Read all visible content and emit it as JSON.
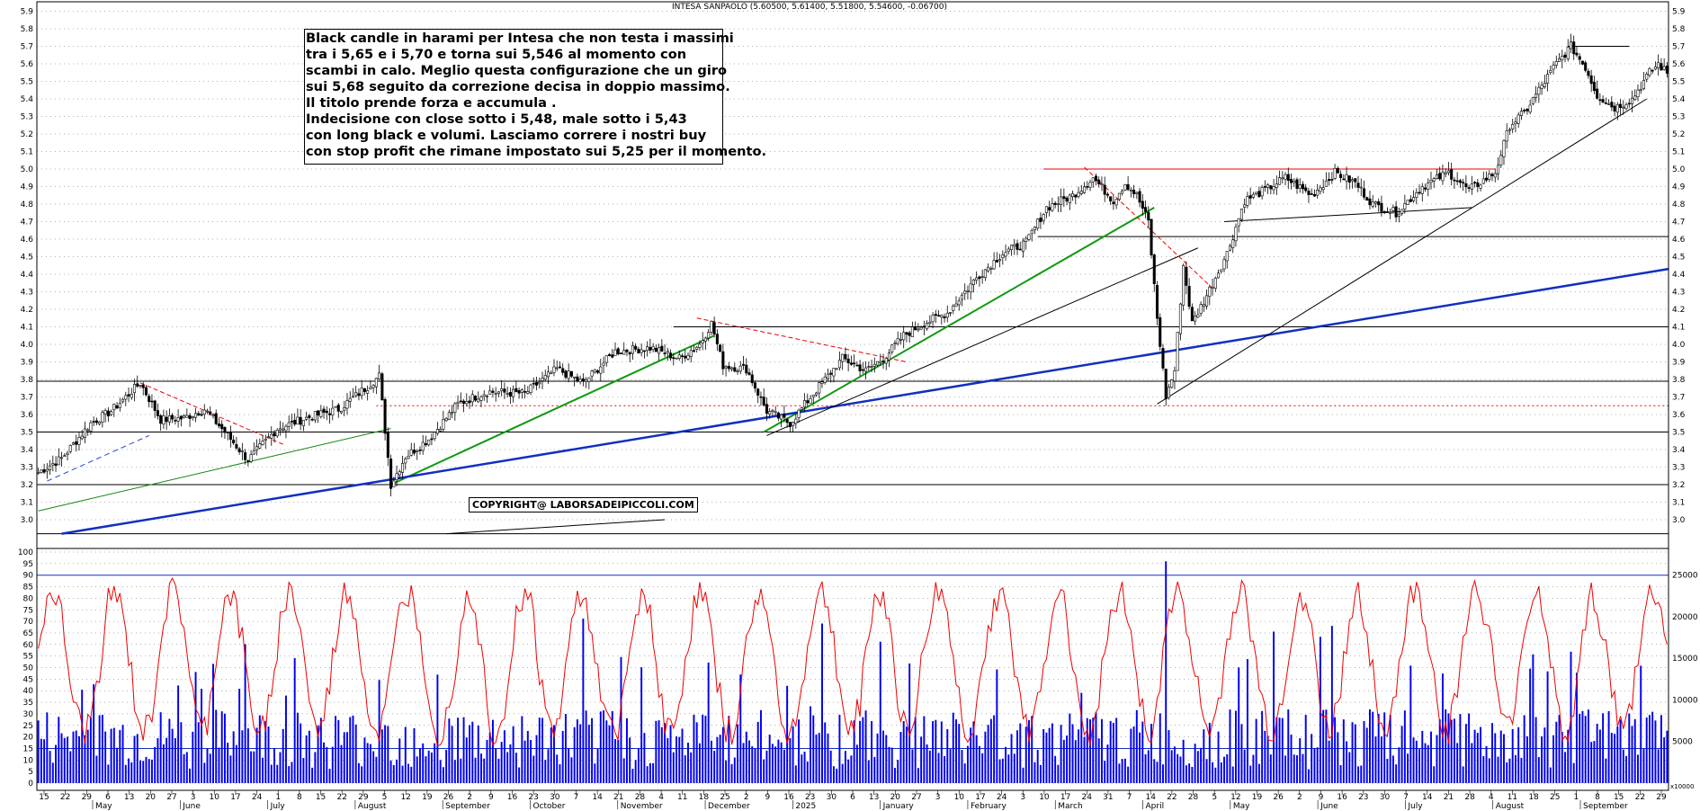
{
  "header": {
    "title": "INTESA SANPAOLO (5.60500, 5.61400, 5.51800, 5.54600, -0.06700)"
  },
  "annotation": {
    "lines": [
      "Black candle in harami per Intesa che non testa i massimi",
      "tra i 5,65 e i 5,70 e torna sui 5,546 al momento con",
      "scambi in calo. Meglio questa configurazione che un giro",
      "sui 5,68 seguito da correzione decisa in doppio massimo.",
      "Il titolo prende forza e accumula .",
      "Indecisione con close sotto i 5,48, male sotto i 5,43",
      "con long black e volumi. Lasciamo correre i nostri buy",
      "con stop profit che rimane impostato sui 5,25 per il momento."
    ],
    "copyright": "COPYRIGHT@ LABORSADEIPICCOLI.COM"
  },
  "chart_data": [
    {
      "type": "candlestick",
      "title": "INTESA SANPAOLO (5.60500, 5.61400, 5.51800, 5.54600, -0.06700)",
      "last_candle": {
        "open": 5.605,
        "high": 5.614,
        "low": 5.518,
        "close": 5.546,
        "change": -0.067
      },
      "y_ticks": [
        "5.9",
        "5.8",
        "5.7",
        "5.6",
        "5.5",
        "5.4",
        "5.3",
        "5.2",
        "5.1",
        "5.0",
        "4.9",
        "4.8",
        "4.7",
        "4.6",
        "4.5",
        "4.4",
        "4.3",
        "4.2",
        "4.1",
        "4.0",
        "3.9",
        "3.8",
        "3.7",
        "3.6",
        "3.5",
        "3.4",
        "3.3",
        "3.2",
        "3.1",
        "3.0"
      ],
      "ylim": [
        2.92,
        5.92
      ],
      "price_path": [
        [
          0,
          3.27
        ],
        [
          8,
          3.35
        ],
        [
          18,
          3.55
        ],
        [
          25,
          3.62
        ],
        [
          35,
          3.78
        ],
        [
          42,
          3.57
        ],
        [
          50,
          3.58
        ],
        [
          57,
          3.63
        ],
        [
          64,
          3.5
        ],
        [
          72,
          3.34
        ],
        [
          82,
          3.52
        ],
        [
          92,
          3.58
        ],
        [
          103,
          3.63
        ],
        [
          113,
          3.76
        ],
        [
          117,
          3.82
        ],
        [
          121,
          3.2
        ],
        [
          126,
          3.36
        ],
        [
          134,
          3.46
        ],
        [
          144,
          3.66
        ],
        [
          154,
          3.73
        ],
        [
          167,
          3.72
        ],
        [
          178,
          3.86
        ],
        [
          187,
          3.78
        ],
        [
          198,
          3.96
        ],
        [
          210,
          3.98
        ],
        [
          220,
          3.92
        ],
        [
          227,
          4.0
        ],
        [
          231,
          4.12
        ],
        [
          235,
          3.88
        ],
        [
          243,
          3.86
        ],
        [
          250,
          3.62
        ],
        [
          258,
          3.55
        ],
        [
          266,
          3.72
        ],
        [
          276,
          3.92
        ],
        [
          284,
          3.85
        ],
        [
          290,
          3.92
        ],
        [
          297,
          4.05
        ],
        [
          304,
          4.12
        ],
        [
          312,
          4.18
        ],
        [
          322,
          4.38
        ],
        [
          331,
          4.52
        ],
        [
          339,
          4.58
        ],
        [
          346,
          4.78
        ],
        [
          355,
          4.85
        ],
        [
          362,
          4.95
        ],
        [
          369,
          4.82
        ],
        [
          373,
          4.92
        ],
        [
          377,
          4.85
        ],
        [
          381,
          4.7
        ],
        [
          384,
          4.15
        ],
        [
          387,
          3.7
        ],
        [
          390,
          3.85
        ],
        [
          393,
          4.45
        ],
        [
          396,
          4.12
        ],
        [
          401,
          4.28
        ],
        [
          408,
          4.52
        ],
        [
          414,
          4.82
        ],
        [
          421,
          4.88
        ],
        [
          428,
          4.95
        ],
        [
          437,
          4.85
        ],
        [
          445,
          4.98
        ],
        [
          452,
          4.92
        ],
        [
          458,
          4.8
        ],
        [
          466,
          4.75
        ],
        [
          475,
          4.9
        ],
        [
          484,
          4.98
        ],
        [
          491,
          4.88
        ],
        [
          500,
          4.98
        ],
        [
          505,
          5.25
        ],
        [
          510,
          5.32
        ],
        [
          515,
          5.45
        ],
        [
          521,
          5.6
        ],
        [
          526,
          5.7
        ],
        [
          531,
          5.58
        ],
        [
          535,
          5.42
        ],
        [
          541,
          5.35
        ],
        [
          547,
          5.4
        ],
        [
          553,
          5.55
        ],
        [
          556,
          5.6
        ],
        [
          559,
          5.546
        ]
      ],
      "horizontal_levels": [
        4.615,
        4.1,
        3.79,
        3.5,
        3.2,
        2.92
      ],
      "dotted_red_levels": [
        3.65
      ],
      "red_resistance_level": 5.0,
      "x_day_labels": [
        "15",
        "22",
        "29",
        "6",
        "13",
        "20",
        "27",
        "3",
        "10",
        "17",
        "24",
        "1",
        "8",
        "15",
        "22",
        "29",
        "5",
        "12",
        "19",
        "26",
        "2",
        "9",
        "16",
        "23",
        "30",
        "7",
        "14",
        "21",
        "28",
        "4",
        "11",
        "18",
        "25",
        "2",
        "9",
        "16",
        "23",
        "30",
        "6",
        "13",
        "20",
        "27",
        "3",
        "10",
        "17",
        "24",
        "3",
        "10",
        "17",
        "24",
        "31",
        "7",
        "14",
        "22",
        "28",
        "5",
        "12",
        "19",
        "26",
        "2",
        "9",
        "16",
        "23",
        "30",
        "7",
        "14",
        "21",
        "28",
        "4",
        "11",
        "18",
        "25",
        "1",
        "8",
        "15",
        "22",
        "29"
      ],
      "x_month_labels": [
        "May",
        "June",
        "July",
        "August",
        "September",
        "October",
        "November",
        "December",
        "2025",
        "January",
        "February",
        "March",
        "April",
        "May",
        "June",
        "July",
        "August",
        "September"
      ]
    },
    {
      "type": "bar",
      "series": [
        {
          "name": "Volume",
          "color": "#0000ee"
        },
        {
          "name": "Oscillator",
          "type": "line",
          "color": "#ee0000"
        }
      ],
      "y_ticks_left": [
        "100",
        "95",
        "90",
        "85",
        "80",
        "75",
        "70",
        "65",
        "60",
        "55",
        "50",
        "45",
        "40",
        "35",
        "30",
        "25",
        "20",
        "15",
        "10",
        "5",
        "0"
      ],
      "y_ticks_right": [
        "25000",
        "20000",
        "15000",
        "10000",
        "5000"
      ],
      "ylim": [
        0,
        100
      ],
      "reference_levels": [
        90,
        15
      ],
      "axis_unit_label": "x10000"
    }
  ]
}
